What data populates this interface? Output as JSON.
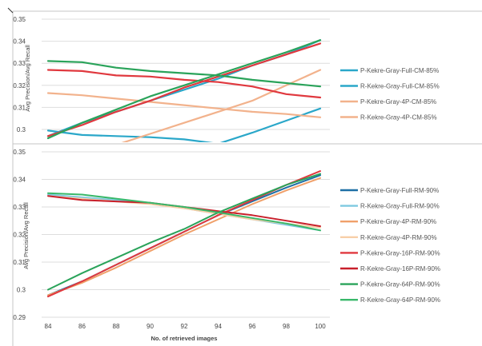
{
  "chart_data": [
    {
      "type": "line",
      "title": "",
      "xlabel": "",
      "ylabel": "Avg Precision/Avg Recall",
      "x": [
        84,
        86,
        88,
        90,
        92,
        94,
        96,
        98,
        100
      ],
      "ylim": [
        0.29,
        0.35
      ],
      "yticks": [
        "0.35",
        "0.34",
        "0.33",
        "0.32",
        "0.31",
        "0.3"
      ],
      "grid": true,
      "legend": "right",
      "series": [
        {
          "name": "P-Kekre-Gray-Full-CM-85%",
          "color": "#2aa7c9",
          "values": [
            0.297,
            0.303,
            0.308,
            0.313,
            0.318,
            0.323,
            0.329,
            0.334,
            0.3405
          ]
        },
        {
          "name": "R-Kekre-Gray-Full-CM-85%",
          "color": "#2aa7c9",
          "values": [
            0.2995,
            0.2975,
            0.297,
            0.2965,
            0.2955,
            0.2935,
            0.2985,
            0.304,
            0.3095
          ]
        },
        {
          "name": "P-Kekre-Gray-4P-CM-85%",
          "color": "#f2b28c",
          "values": [
            0.284,
            0.288,
            0.293,
            0.298,
            0.303,
            0.308,
            0.313,
            0.32,
            0.327
          ]
        },
        {
          "name": "R-Kekre-Gray-4P-CM-85%",
          "color": "#f2b28c",
          "values": [
            0.3165,
            0.3155,
            0.314,
            0.3125,
            0.311,
            0.3095,
            0.308,
            0.307,
            0.3055
          ]
        },
        {
          "name": "",
          "color": "#e0383e",
          "values": [
            0.297,
            0.302,
            0.308,
            0.313,
            0.319,
            0.324,
            0.329,
            0.334,
            0.339
          ]
        },
        {
          "name": "",
          "color": "#e0383e",
          "values": [
            0.327,
            0.3265,
            0.3245,
            0.324,
            0.3225,
            0.3215,
            0.3195,
            0.316,
            0.3145
          ]
        },
        {
          "name": "",
          "color": "#2aa35a",
          "values": [
            0.296,
            0.303,
            0.309,
            0.315,
            0.32,
            0.325,
            0.33,
            0.335,
            0.3405
          ]
        },
        {
          "name": "",
          "color": "#2aa35a",
          "values": [
            0.331,
            0.3305,
            0.328,
            0.3265,
            0.3255,
            0.3245,
            0.3225,
            0.321,
            0.3195
          ]
        }
      ]
    },
    {
      "type": "line",
      "title": "",
      "xlabel": "No. of retrieved images",
      "ylabel": "Avg Precision/Avg Recall",
      "x": [
        84,
        86,
        88,
        90,
        92,
        94,
        96,
        98,
        100
      ],
      "xticks": [
        "84",
        "86",
        "88",
        "90",
        "92",
        "94",
        "96",
        "98",
        "100"
      ],
      "ylim": [
        0.29,
        0.35
      ],
      "yticks": [
        "0.35",
        "0.34",
        "0.33",
        "0.32",
        "0.31",
        "0.3",
        "0.29"
      ],
      "grid": true,
      "legend": "right",
      "series": [
        {
          "name": "P-Kekre-Gray-Full-RM-90%",
          "color": "#1d6fa5",
          "values": [
            0.298,
            0.303,
            0.309,
            0.315,
            0.321,
            0.327,
            0.332,
            0.337,
            0.3415
          ]
        },
        {
          "name": "R-Kekre-Gray-Full-RM-90%",
          "color": "#7ec9e0",
          "values": [
            0.3345,
            0.3335,
            0.3325,
            0.3315,
            0.3295,
            0.3275,
            0.3255,
            0.3235,
            0.3215
          ]
        },
        {
          "name": "P-Kekre-Gray-4P-RM-90%",
          "color": "#f0a06a",
          "values": [
            0.298,
            0.3025,
            0.308,
            0.314,
            0.32,
            0.3255,
            0.331,
            0.336,
            0.3405
          ]
        },
        {
          "name": "R-Kekre-Gray-4P-RM-90%",
          "color": "#f7cfa8",
          "values": [
            0.334,
            0.333,
            0.332,
            0.331,
            0.3295,
            0.3275,
            0.3255,
            0.324,
            0.3225
          ]
        },
        {
          "name": "P-Kekre-Gray-16P-RM-90%",
          "color": "#e0383e",
          "values": [
            0.2975,
            0.303,
            0.309,
            0.315,
            0.321,
            0.327,
            0.3325,
            0.338,
            0.343
          ]
        },
        {
          "name": "R-Kekre-Gray-16P-RM-90%",
          "color": "#c8202b",
          "values": [
            0.334,
            0.3325,
            0.332,
            0.3315,
            0.33,
            0.3285,
            0.327,
            0.325,
            0.323
          ]
        },
        {
          "name": "P-Kekre-Gray-64P-RM-90%",
          "color": "#2aa35a",
          "values": [
            0.3,
            0.306,
            0.3115,
            0.317,
            0.322,
            0.328,
            0.333,
            0.338,
            0.342
          ]
        },
        {
          "name": "R-Kekre-Gray-64P-RM-90%",
          "color": "#39b86a",
          "values": [
            0.335,
            0.3345,
            0.333,
            0.3315,
            0.33,
            0.328,
            0.326,
            0.324,
            0.3215
          ]
        }
      ]
    }
  ]
}
